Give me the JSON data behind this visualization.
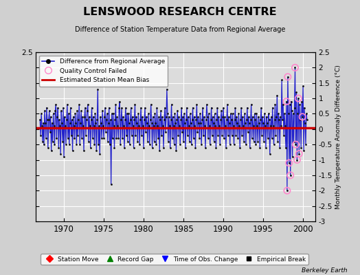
{
  "title": "LENSWOOD RESEARCH CENTRE",
  "subtitle": "Difference of Station Temperature Data from Regional Average",
  "ylabel_right": "Monthly Temperature Anomaly Difference (°C)",
  "bias": 0.05,
  "ylim": [
    -3,
    2.5
  ],
  "xlim": [
    1966.5,
    2001.5
  ],
  "xticks": [
    1970,
    1975,
    1980,
    1985,
    1990,
    1995,
    2000
  ],
  "yticks": [
    2.5,
    2,
    1.5,
    1,
    0.5,
    0,
    -0.5,
    -1,
    -1.5,
    -2,
    -2.5,
    -3
  ],
  "background_color": "#dcdcdc",
  "grid_color": "#ffffff",
  "line_color": "#2222cc",
  "dot_color": "#111111",
  "bias_color": "#cc0000",
  "qc_color": "#ff88cc",
  "data": [
    [
      1967.0,
      0.3
    ],
    [
      1967.083,
      -0.2
    ],
    [
      1967.167,
      0.5
    ],
    [
      1967.25,
      0.1
    ],
    [
      1967.333,
      -0.4
    ],
    [
      1967.417,
      0.2
    ],
    [
      1967.5,
      -0.5
    ],
    [
      1967.583,
      0.6
    ],
    [
      1967.667,
      0.2
    ],
    [
      1967.75,
      -0.3
    ],
    [
      1967.833,
      0.7
    ],
    [
      1967.917,
      0.3
    ],
    [
      1968.0,
      -0.6
    ],
    [
      1968.083,
      0.3
    ],
    [
      1968.167,
      0.6
    ],
    [
      1968.25,
      -0.1
    ],
    [
      1968.333,
      0.4
    ],
    [
      1968.417,
      -0.7
    ],
    [
      1968.5,
      0.2
    ],
    [
      1968.583,
      -0.4
    ],
    [
      1968.667,
      0.5
    ],
    [
      1968.75,
      0.1
    ],
    [
      1968.833,
      -0.5
    ],
    [
      1968.917,
      0.6
    ],
    [
      1969.0,
      0.8
    ],
    [
      1969.083,
      -0.3
    ],
    [
      1969.167,
      0.4
    ],
    [
      1969.25,
      0.7
    ],
    [
      1969.333,
      -0.6
    ],
    [
      1969.417,
      0.3
    ],
    [
      1969.5,
      0.1
    ],
    [
      1969.583,
      -0.8
    ],
    [
      1969.667,
      0.6
    ],
    [
      1969.75,
      0.2
    ],
    [
      1969.833,
      -0.4
    ],
    [
      1969.917,
      0.7
    ],
    [
      1970.0,
      -0.9
    ],
    [
      1970.083,
      0.4
    ],
    [
      1970.167,
      0.1
    ],
    [
      1970.25,
      -0.5
    ],
    [
      1970.333,
      0.3
    ],
    [
      1970.417,
      0.8
    ],
    [
      1970.5,
      -0.3
    ],
    [
      1970.583,
      0.5
    ],
    [
      1970.667,
      -0.5
    ],
    [
      1970.75,
      0.2
    ],
    [
      1970.833,
      0.7
    ],
    [
      1970.917,
      -0.2
    ],
    [
      1971.0,
      0.3
    ],
    [
      1971.083,
      -0.7
    ],
    [
      1971.167,
      0.4
    ],
    [
      1971.25,
      0.1
    ],
    [
      1971.333,
      -0.3
    ],
    [
      1971.417,
      0.5
    ],
    [
      1971.5,
      0.2
    ],
    [
      1971.583,
      -0.5
    ],
    [
      1971.667,
      0.6
    ],
    [
      1971.75,
      -0.2
    ],
    [
      1971.833,
      0.3
    ],
    [
      1971.917,
      0.8
    ],
    [
      1972.0,
      -0.5
    ],
    [
      1972.083,
      0.2
    ],
    [
      1972.167,
      0.6
    ],
    [
      1972.25,
      -0.3
    ],
    [
      1972.333,
      0.4
    ],
    [
      1972.417,
      0.1
    ],
    [
      1972.5,
      -0.7
    ],
    [
      1972.583,
      0.4
    ],
    [
      1972.667,
      0.7
    ],
    [
      1972.75,
      -0.2
    ],
    [
      1972.833,
      0.3
    ],
    [
      1972.917,
      0.6
    ],
    [
      1973.0,
      0.8
    ],
    [
      1973.083,
      -0.4
    ],
    [
      1973.167,
      0.4
    ],
    [
      1973.25,
      0.1
    ],
    [
      1973.333,
      -0.6
    ],
    [
      1973.417,
      0.3
    ],
    [
      1973.5,
      0.7
    ],
    [
      1973.583,
      -0.3
    ],
    [
      1973.667,
      0.4
    ],
    [
      1973.75,
      0.1
    ],
    [
      1973.833,
      -0.5
    ],
    [
      1973.917,
      0.5
    ],
    [
      1974.0,
      0.2
    ],
    [
      1974.083,
      -0.7
    ],
    [
      1974.167,
      0.3
    ],
    [
      1974.25,
      1.3
    ],
    [
      1974.333,
      -0.5
    ],
    [
      1974.417,
      0.1
    ],
    [
      1974.5,
      -0.8
    ],
    [
      1974.583,
      0.4
    ],
    [
      1974.667,
      0.2
    ],
    [
      1974.75,
      -0.3
    ],
    [
      1974.833,
      0.6
    ],
    [
      1974.917,
      0.1
    ],
    [
      1975.0,
      -0.3
    ],
    [
      1975.083,
      0.4
    ],
    [
      1975.167,
      0.7
    ],
    [
      1975.25,
      -0.1
    ],
    [
      1975.333,
      0.3
    ],
    [
      1975.417,
      0.5
    ],
    [
      1975.5,
      -0.4
    ],
    [
      1975.583,
      0.2
    ],
    [
      1975.667,
      0.7
    ],
    [
      1975.75,
      -0.5
    ],
    [
      1975.833,
      0.3
    ],
    [
      1975.917,
      -1.8
    ],
    [
      1976.0,
      0.5
    ],
    [
      1976.083,
      -0.3
    ],
    [
      1976.167,
      0.5
    ],
    [
      1976.25,
      0.1
    ],
    [
      1976.333,
      -0.6
    ],
    [
      1976.417,
      0.3
    ],
    [
      1976.5,
      0.8
    ],
    [
      1976.583,
      -0.3
    ],
    [
      1976.667,
      0.4
    ],
    [
      1976.75,
      0.1
    ],
    [
      1976.833,
      -0.3
    ],
    [
      1976.917,
      0.7
    ],
    [
      1977.0,
      0.9
    ],
    [
      1977.083,
      -0.5
    ],
    [
      1977.167,
      0.3
    ],
    [
      1977.25,
      0.7
    ],
    [
      1977.333,
      -0.3
    ],
    [
      1977.417,
      0.4
    ],
    [
      1977.5,
      0.1
    ],
    [
      1977.583,
      -0.6
    ],
    [
      1977.667,
      0.3
    ],
    [
      1977.75,
      0.7
    ],
    [
      1977.833,
      -0.2
    ],
    [
      1977.917,
      0.5
    ],
    [
      1978.0,
      -0.4
    ],
    [
      1978.083,
      0.5
    ],
    [
      1978.167,
      0.2
    ],
    [
      1978.25,
      -0.5
    ],
    [
      1978.333,
      0.3
    ],
    [
      1978.417,
      0.7
    ],
    [
      1978.5,
      -0.2
    ],
    [
      1978.583,
      0.4
    ],
    [
      1978.667,
      0.1
    ],
    [
      1978.75,
      -0.6
    ],
    [
      1978.833,
      0.3
    ],
    [
      1978.917,
      0.8
    ],
    [
      1979.0,
      -0.2
    ],
    [
      1979.083,
      0.4
    ],
    [
      1979.167,
      0.2
    ],
    [
      1979.25,
      -0.4
    ],
    [
      1979.333,
      0.5
    ],
    [
      1979.417,
      0.1
    ],
    [
      1979.5,
      -0.5
    ],
    [
      1979.583,
      0.3
    ],
    [
      1979.667,
      0.7
    ],
    [
      1979.75,
      -0.2
    ],
    [
      1979.833,
      0.4
    ],
    [
      1979.917,
      0.1
    ],
    [
      1980.0,
      -0.6
    ],
    [
      1980.083,
      0.3
    ],
    [
      1980.167,
      0.7
    ],
    [
      1980.25,
      -0.1
    ],
    [
      1980.333,
      0.4
    ],
    [
      1980.417,
      0.2
    ],
    [
      1980.5,
      -0.4
    ],
    [
      1980.583,
      0.5
    ],
    [
      1980.667,
      0.1
    ],
    [
      1980.75,
      -0.5
    ],
    [
      1980.833,
      0.3
    ],
    [
      1980.917,
      0.8
    ],
    [
      1981.0,
      0.2
    ],
    [
      1981.083,
      -0.6
    ],
    [
      1981.167,
      0.4
    ],
    [
      1981.25,
      0.1
    ],
    [
      1981.333,
      -0.4
    ],
    [
      1981.417,
      0.5
    ],
    [
      1981.5,
      0.2
    ],
    [
      1981.583,
      -0.5
    ],
    [
      1981.667,
      0.7
    ],
    [
      1981.75,
      0.1
    ],
    [
      1981.833,
      -0.3
    ],
    [
      1981.917,
      0.4
    ],
    [
      1982.0,
      -0.7
    ],
    [
      1982.083,
      0.3
    ],
    [
      1982.167,
      0.6
    ],
    [
      1982.25,
      -0.2
    ],
    [
      1982.333,
      0.4
    ],
    [
      1982.417,
      0.1
    ],
    [
      1982.5,
      -0.6
    ],
    [
      1982.583,
      0.3
    ],
    [
      1982.667,
      0.7
    ],
    [
      1982.75,
      -0.1
    ],
    [
      1982.833,
      0.4
    ],
    [
      1982.917,
      1.3
    ],
    [
      1983.0,
      0.5
    ],
    [
      1983.083,
      -0.4
    ],
    [
      1983.167,
      0.4
    ],
    [
      1983.25,
      0.1
    ],
    [
      1983.333,
      -0.6
    ],
    [
      1983.417,
      0.3
    ],
    [
      1983.5,
      0.8
    ],
    [
      1983.583,
      -0.3
    ],
    [
      1983.667,
      0.4
    ],
    [
      1983.75,
      0.1
    ],
    [
      1983.833,
      -0.5
    ],
    [
      1983.917,
      0.5
    ],
    [
      1984.0,
      0.2
    ],
    [
      1984.083,
      -0.7
    ],
    [
      1984.167,
      0.3
    ],
    [
      1984.25,
      0.6
    ],
    [
      1984.333,
      -0.2
    ],
    [
      1984.417,
      0.4
    ],
    [
      1984.5,
      0.1
    ],
    [
      1984.583,
      -0.5
    ],
    [
      1984.667,
      0.3
    ],
    [
      1984.75,
      0.7
    ],
    [
      1984.833,
      -0.1
    ],
    [
      1984.917,
      0.4
    ],
    [
      1985.0,
      -0.4
    ],
    [
      1985.083,
      0.5
    ],
    [
      1985.167,
      0.2
    ],
    [
      1985.25,
      -0.6
    ],
    [
      1985.333,
      0.3
    ],
    [
      1985.417,
      0.7
    ],
    [
      1985.5,
      -0.2
    ],
    [
      1985.583,
      0.4
    ],
    [
      1985.667,
      0.1
    ],
    [
      1985.75,
      -0.4
    ],
    [
      1985.833,
      0.5
    ],
    [
      1985.917,
      0.2
    ],
    [
      1986.0,
      -0.5
    ],
    [
      1986.083,
      0.3
    ],
    [
      1986.167,
      0.7
    ],
    [
      1986.25,
      -0.3
    ],
    [
      1986.333,
      0.4
    ],
    [
      1986.417,
      0.1
    ],
    [
      1986.5,
      -0.6
    ],
    [
      1986.583,
      0.3
    ],
    [
      1986.667,
      0.8
    ],
    [
      1986.75,
      -0.1
    ],
    [
      1986.833,
      0.4
    ],
    [
      1986.917,
      0.2
    ],
    [
      1987.0,
      -0.3
    ],
    [
      1987.083,
      0.5
    ],
    [
      1987.167,
      0.2
    ],
    [
      1987.25,
      -0.5
    ],
    [
      1987.333,
      0.3
    ],
    [
      1987.417,
      0.7
    ],
    [
      1987.5,
      -0.2
    ],
    [
      1987.583,
      0.4
    ],
    [
      1987.667,
      0.1
    ],
    [
      1987.75,
      -0.6
    ],
    [
      1987.833,
      0.3
    ],
    [
      1987.917,
      0.8
    ],
    [
      1988.0,
      0.4
    ],
    [
      1988.083,
      -0.3
    ],
    [
      1988.167,
      0.5
    ],
    [
      1988.25,
      0.1
    ],
    [
      1988.333,
      -0.5
    ],
    [
      1988.417,
      0.3
    ],
    [
      1988.5,
      0.7
    ],
    [
      1988.583,
      -0.2
    ],
    [
      1988.667,
      0.4
    ],
    [
      1988.75,
      0.2
    ],
    [
      1988.833,
      -0.4
    ],
    [
      1988.917,
      0.5
    ],
    [
      1989.0,
      0.1
    ],
    [
      1989.083,
      -0.6
    ],
    [
      1989.167,
      0.3
    ],
    [
      1989.25,
      0.7
    ],
    [
      1989.333,
      -0.2
    ],
    [
      1989.417,
      0.4
    ],
    [
      1989.5,
      0.1
    ],
    [
      1989.583,
      -0.5
    ],
    [
      1989.667,
      0.3
    ],
    [
      1989.75,
      0.6
    ],
    [
      1989.833,
      -0.2
    ],
    [
      1989.917,
      0.4
    ],
    [
      1990.0,
      0.7
    ],
    [
      1990.083,
      -0.3
    ],
    [
      1990.167,
      0.4
    ],
    [
      1990.25,
      0.1
    ],
    [
      1990.333,
      -0.6
    ],
    [
      1990.417,
      0.3
    ],
    [
      1990.5,
      0.8
    ],
    [
      1990.583,
      -0.2
    ],
    [
      1990.667,
      0.4
    ],
    [
      1990.75,
      0.2
    ],
    [
      1990.833,
      -0.5
    ],
    [
      1990.917,
      0.5
    ],
    [
      1991.0,
      0.3
    ],
    [
      1991.083,
      -0.2
    ],
    [
      1991.167,
      0.5
    ],
    [
      1991.25,
      0.1
    ],
    [
      1991.333,
      -0.5
    ],
    [
      1991.417,
      0.3
    ],
    [
      1991.5,
      0.7
    ],
    [
      1991.583,
      -0.2
    ],
    [
      1991.667,
      0.4
    ],
    [
      1991.75,
      0.2
    ],
    [
      1991.833,
      -0.3
    ],
    [
      1991.917,
      0.5
    ],
    [
      1992.0,
      0.1
    ],
    [
      1992.083,
      -0.6
    ],
    [
      1992.167,
      0.3
    ],
    [
      1992.25,
      0.7
    ],
    [
      1992.333,
      -0.2
    ],
    [
      1992.417,
      0.4
    ],
    [
      1992.5,
      0.1
    ],
    [
      1992.583,
      -0.4
    ],
    [
      1992.667,
      0.5
    ],
    [
      1992.75,
      0.2
    ],
    [
      1992.833,
      -0.5
    ],
    [
      1992.917,
      0.3
    ],
    [
      1993.0,
      0.7
    ],
    [
      1993.083,
      -0.1
    ],
    [
      1993.167,
      0.4
    ],
    [
      1993.25,
      0.2
    ],
    [
      1993.333,
      -0.6
    ],
    [
      1993.417,
      0.3
    ],
    [
      1993.5,
      0.8
    ],
    [
      1993.583,
      -0.3
    ],
    [
      1993.667,
      0.4
    ],
    [
      1993.75,
      0.1
    ],
    [
      1993.833,
      -0.4
    ],
    [
      1993.917,
      0.5
    ],
    [
      1994.0,
      0.3
    ],
    [
      1994.083,
      -0.5
    ],
    [
      1994.167,
      0.5
    ],
    [
      1994.25,
      0.1
    ],
    [
      1994.333,
      -0.4
    ],
    [
      1994.417,
      0.4
    ],
    [
      1994.5,
      0.2
    ],
    [
      1994.583,
      -0.6
    ],
    [
      1994.667,
      0.3
    ],
    [
      1994.75,
      0.7
    ],
    [
      1994.833,
      -0.2
    ],
    [
      1994.917,
      0.4
    ],
    [
      1995.0,
      0.2
    ],
    [
      1995.083,
      -0.4
    ],
    [
      1995.167,
      0.5
    ],
    [
      1995.25,
      0.1
    ],
    [
      1995.333,
      -0.6
    ],
    [
      1995.417,
      0.4
    ],
    [
      1995.5,
      0.2
    ],
    [
      1995.583,
      -0.3
    ],
    [
      1995.667,
      0.5
    ],
    [
      1995.75,
      0.3
    ],
    [
      1995.833,
      -0.8
    ],
    [
      1995.917,
      0.1
    ],
    [
      1996.0,
      0.4
    ],
    [
      1996.083,
      -0.3
    ],
    [
      1996.167,
      0.7
    ],
    [
      1996.25,
      0.1
    ],
    [
      1996.333,
      -0.5
    ],
    [
      1996.417,
      0.3
    ],
    [
      1996.5,
      0.8
    ],
    [
      1996.583,
      -0.2
    ],
    [
      1996.667,
      0.4
    ],
    [
      1996.75,
      1.1
    ],
    [
      1996.833,
      -0.4
    ],
    [
      1996.917,
      0.5
    ],
    [
      1997.0,
      0.3
    ],
    [
      1997.083,
      -0.6
    ],
    [
      1997.167,
      0.4
    ],
    [
      1997.25,
      0.1
    ],
    [
      1997.333,
      1.6
    ],
    [
      1997.417,
      0.3
    ],
    [
      1997.5,
      0.8
    ],
    [
      1997.583,
      -0.2
    ],
    [
      1997.667,
      0.5
    ],
    [
      1997.75,
      0.1
    ],
    [
      1997.833,
      -0.6
    ],
    [
      1997.917,
      0.9
    ],
    [
      1998.0,
      -2.0
    ],
    [
      1998.083,
      1.7
    ],
    [
      1998.167,
      0.5
    ],
    [
      1998.25,
      -1.1
    ],
    [
      1998.333,
      0.8
    ],
    [
      1998.417,
      -1.5
    ],
    [
      1998.5,
      0.9
    ],
    [
      1998.583,
      0.6
    ],
    [
      1998.667,
      -0.9
    ],
    [
      1998.75,
      0.5
    ],
    [
      1998.833,
      -0.4
    ],
    [
      1998.917,
      0.7
    ],
    [
      1999.0,
      2.0
    ],
    [
      1999.083,
      -0.5
    ],
    [
      1999.167,
      1.2
    ],
    [
      1999.25,
      -1.0
    ],
    [
      1999.333,
      0.5
    ],
    [
      1999.417,
      1.0
    ],
    [
      1999.5,
      -0.8
    ],
    [
      1999.583,
      0.8
    ],
    [
      1999.667,
      0.3
    ],
    [
      1999.75,
      -0.6
    ],
    [
      1999.833,
      0.9
    ],
    [
      1999.917,
      0.4
    ],
    [
      2000.0,
      1.4
    ],
    [
      2000.083,
      -0.7
    ],
    [
      2000.167,
      0.7
    ],
    [
      2000.25,
      0.2
    ],
    [
      2000.333,
      -0.5
    ],
    [
      2000.417,
      0.5
    ],
    [
      2000.5,
      0.3
    ]
  ],
  "qc_point_times": [
    1997.917,
    1998.0,
    1998.083,
    1998.25,
    1998.417,
    1999.0,
    1999.083,
    1999.25,
    1999.417,
    1999.5,
    1999.917
  ],
  "qc_point_vals": [
    0.9,
    -2.0,
    1.7,
    -1.1,
    -1.5,
    2.0,
    -0.5,
    -1.0,
    1.0,
    -0.8,
    0.4
  ]
}
